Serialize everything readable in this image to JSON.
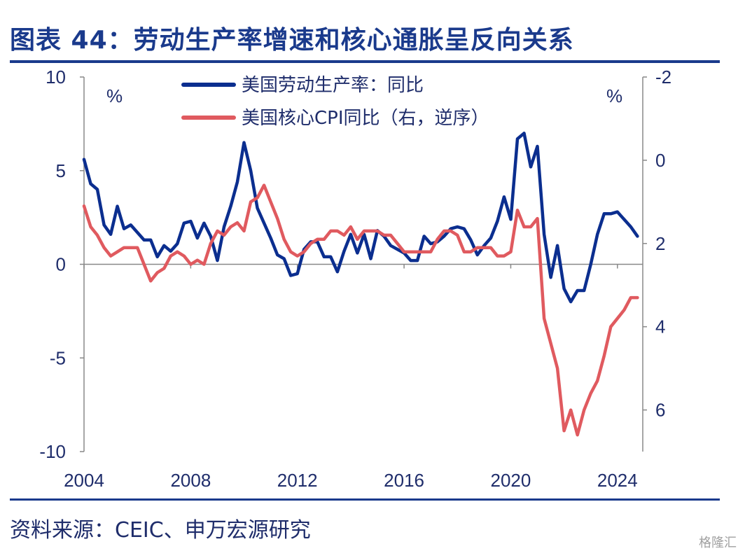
{
  "title": "图表 44：劳动生产率增速和核心通胀呈反向关系",
  "source": "资料来源：CEIC、申万宏源研究",
  "watermark": "格隆汇",
  "chart_data": {
    "type": "line",
    "title": "图表 44：劳动生产率增速和核心通胀呈反向关系",
    "left_unit": "%",
    "right_unit": "%",
    "left_axis": {
      "ylim": [
        -10,
        10
      ],
      "ticks": [
        10,
        5,
        0,
        -5,
        -10
      ],
      "tick_labels": [
        "10",
        "5",
        "0",
        "-5",
        "-10"
      ]
    },
    "right_axis": {
      "ylim": [
        -2,
        7
      ],
      "inverted": true,
      "ticks": [
        -2,
        0,
        2,
        4,
        6
      ],
      "tick_labels": [
        "-2",
        "0",
        "2",
        "4",
        "6"
      ]
    },
    "x_axis": {
      "xlim": [
        2004,
        2024.95
      ],
      "ticks": [
        2004,
        2008,
        2012,
        2016,
        2020,
        2024
      ],
      "tick_labels": [
        "2004",
        "2008",
        "2012",
        "2016",
        "2020",
        "2024"
      ]
    },
    "zero_line": true,
    "grid": false,
    "legend_position": "top-center",
    "colors": {
      "productivity": "#0b2e8f",
      "core_cpi": "#e05a5f",
      "axis": "#888888",
      "title": "#1a3a8c"
    },
    "series": [
      {
        "name": "美国劳动生产率：同比",
        "axis": "left",
        "x": [
          2004.0,
          2004.25,
          2004.5,
          2004.75,
          2005.0,
          2005.25,
          2005.5,
          2005.75,
          2006.0,
          2006.25,
          2006.5,
          2006.75,
          2007.0,
          2007.25,
          2007.5,
          2007.75,
          2008.0,
          2008.25,
          2008.5,
          2008.75,
          2009.0,
          2009.25,
          2009.5,
          2009.75,
          2010.0,
          2010.25,
          2010.5,
          2010.75,
          2011.0,
          2011.25,
          2011.5,
          2011.75,
          2012.0,
          2012.25,
          2012.5,
          2012.75,
          2013.0,
          2013.25,
          2013.5,
          2013.75,
          2014.0,
          2014.25,
          2014.5,
          2014.75,
          2015.0,
          2015.25,
          2015.5,
          2015.75,
          2016.0,
          2016.25,
          2016.5,
          2016.75,
          2017.0,
          2017.25,
          2017.5,
          2017.75,
          2018.0,
          2018.25,
          2018.5,
          2018.75,
          2019.0,
          2019.25,
          2019.5,
          2019.75,
          2020.0,
          2020.25,
          2020.5,
          2020.75,
          2021.0,
          2021.25,
          2021.5,
          2021.75,
          2022.0,
          2022.25,
          2022.5,
          2022.75,
          2023.0,
          2023.25,
          2023.5,
          2023.75,
          2024.0,
          2024.25,
          2024.5,
          2024.75
        ],
        "values": [
          5.6,
          4.3,
          4.0,
          2.1,
          1.6,
          3.1,
          1.9,
          2.1,
          1.7,
          1.3,
          1.3,
          0.4,
          1.0,
          0.7,
          1.1,
          2.2,
          2.3,
          1.4,
          2.2,
          1.5,
          0.2,
          2.0,
          3.1,
          4.4,
          6.5,
          5.0,
          3.0,
          2.2,
          1.4,
          0.5,
          0.3,
          -0.6,
          -0.5,
          0.8,
          1.2,
          1.2,
          0.4,
          0.4,
          -0.4,
          0.7,
          1.6,
          0.6,
          1.6,
          0.3,
          1.8,
          1.5,
          1.0,
          0.8,
          0.6,
          0.2,
          0.2,
          1.5,
          1.1,
          1.2,
          1.5,
          1.9,
          2.0,
          1.9,
          1.3,
          0.5,
          1.0,
          1.4,
          2.3,
          3.6,
          2.4,
          6.7,
          7.0,
          5.2,
          6.3,
          1.6,
          -0.7,
          1.0,
          -1.3,
          -2.0,
          -1.4,
          -1.4,
          0.0,
          1.6,
          2.7,
          2.7,
          2.8,
          2.4,
          2.0,
          1.5
        ]
      },
      {
        "name": "美国核心CPI同比（右，逆序）",
        "axis": "right",
        "x": [
          2004.0,
          2004.25,
          2004.5,
          2004.75,
          2005.0,
          2005.25,
          2005.5,
          2005.75,
          2006.0,
          2006.25,
          2006.5,
          2006.75,
          2007.0,
          2007.25,
          2007.5,
          2007.75,
          2008.0,
          2008.25,
          2008.5,
          2008.75,
          2009.0,
          2009.25,
          2009.5,
          2009.75,
          2010.0,
          2010.25,
          2010.5,
          2010.75,
          2011.0,
          2011.25,
          2011.5,
          2011.75,
          2012.0,
          2012.25,
          2012.5,
          2012.75,
          2013.0,
          2013.25,
          2013.5,
          2013.75,
          2014.0,
          2014.25,
          2014.5,
          2014.75,
          2015.0,
          2015.25,
          2015.5,
          2015.75,
          2016.0,
          2016.25,
          2016.5,
          2016.75,
          2017.0,
          2017.25,
          2017.5,
          2017.75,
          2018.0,
          2018.25,
          2018.5,
          2018.75,
          2019.0,
          2019.25,
          2019.5,
          2019.75,
          2020.0,
          2020.25,
          2020.5,
          2020.75,
          2021.0,
          2021.25,
          2021.5,
          2021.75,
          2022.0,
          2022.25,
          2022.5,
          2022.75,
          2023.0,
          2023.25,
          2023.5,
          2023.75,
          2024.0,
          2024.25,
          2024.5,
          2024.75
        ],
        "values": [
          1.1,
          1.6,
          1.8,
          2.1,
          2.3,
          2.2,
          2.1,
          2.1,
          2.1,
          2.5,
          2.9,
          2.7,
          2.6,
          2.3,
          2.2,
          2.3,
          2.5,
          2.4,
          2.5,
          2.0,
          1.7,
          1.8,
          1.6,
          1.5,
          1.7,
          1.0,
          0.9,
          0.6,
          1.0,
          1.4,
          1.9,
          2.2,
          2.3,
          2.2,
          2.0,
          1.9,
          1.9,
          1.7,
          1.7,
          1.8,
          1.6,
          1.9,
          1.7,
          1.7,
          1.7,
          1.8,
          1.8,
          2.0,
          2.2,
          2.2,
          2.2,
          2.2,
          2.2,
          1.9,
          1.7,
          1.7,
          1.8,
          2.2,
          2.2,
          2.1,
          2.1,
          2.1,
          2.3,
          2.3,
          2.2,
          1.2,
          1.6,
          1.6,
          1.4,
          3.8,
          4.4,
          5.0,
          6.5,
          6.0,
          6.6,
          6.0,
          5.6,
          5.3,
          4.7,
          4.0,
          3.8,
          3.6,
          3.3,
          3.3
        ]
      }
    ]
  }
}
